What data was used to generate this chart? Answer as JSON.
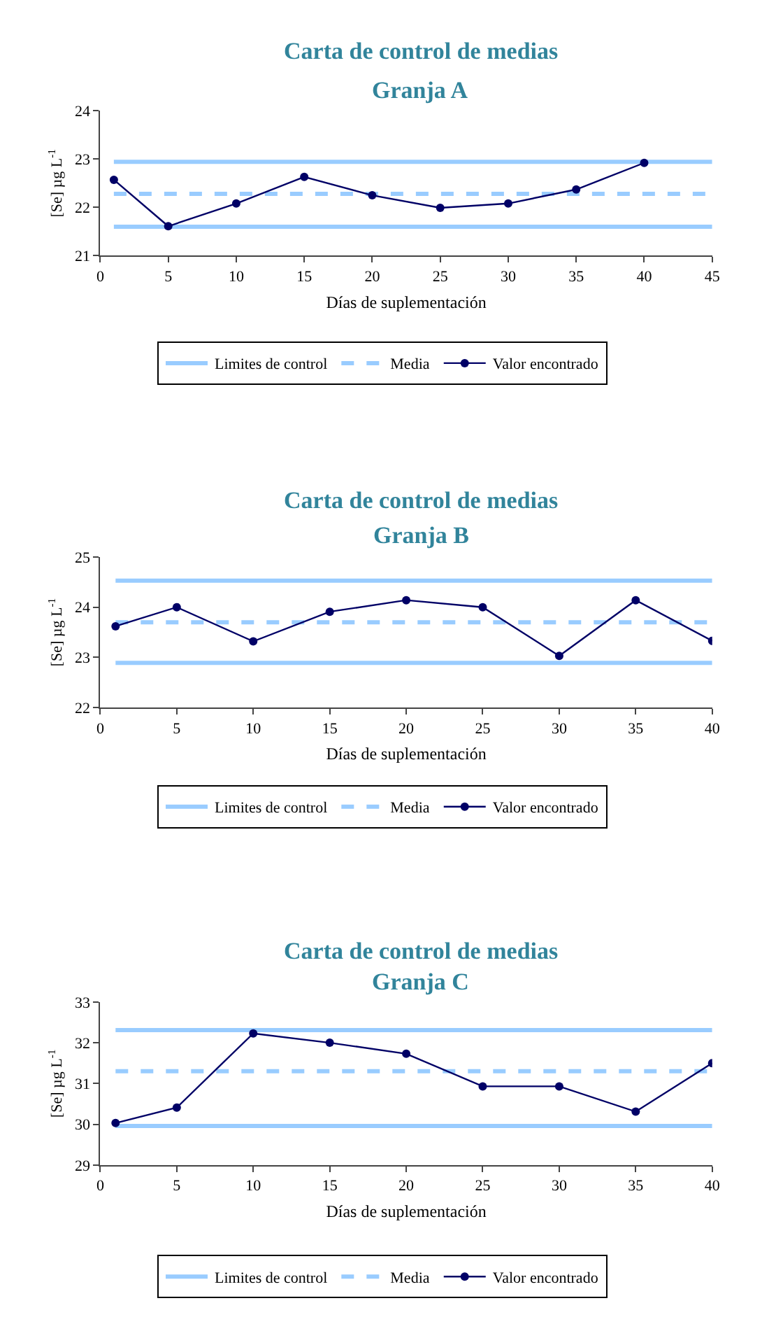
{
  "chart_data": [
    {
      "type": "line",
      "title": "Carta de control de medias",
      "subtitle": "Granja A",
      "xlabel": "Días de suplementación",
      "ylabel": "[Se] µg L$^{-1}$",
      "x": [
        1,
        5,
        10,
        15,
        20,
        25,
        30,
        35,
        40
      ],
      "series": [
        {
          "name": "Valor encontrado",
          "color": "#000066",
          "values": [
            22.57,
            21.61,
            22.08,
            22.63,
            22.25,
            21.99,
            22.08,
            22.37,
            22.92
          ]
        }
      ],
      "ref_lines": [
        {
          "axis": "y",
          "value": 22.94,
          "label": "Limites de control",
          "color": "#99ccff",
          "line_style": "solid"
        },
        {
          "axis": "y",
          "value": 21.6,
          "color": "#99ccff",
          "line_style": "solid"
        },
        {
          "axis": "y",
          "value": 22.28,
          "label": "Media",
          "color": "#99ccff",
          "line_style": "dashed"
        }
      ],
      "xlim": [
        0,
        45
      ],
      "xticks": [
        0,
        5,
        10,
        15,
        20,
        25,
        30,
        35,
        40,
        45
      ],
      "ylim": [
        21,
        24
      ],
      "yticks": [
        21,
        22,
        23,
        24
      ],
      "legend": "bottom",
      "marker": "circle",
      "line_style": "solid"
    },
    {
      "type": "line",
      "title": "Carta de control de medias",
      "subtitle": "Granja B",
      "xlabel": "Días de suplementación",
      "ylabel": "[Se] µg L$^{-1}$",
      "x": [
        1,
        5,
        10,
        15,
        20,
        25,
        30,
        35,
        40
      ],
      "series": [
        {
          "name": "Valor encontrado",
          "color": "#000066",
          "values": [
            23.62,
            24.0,
            23.32,
            23.91,
            24.14,
            24.0,
            23.03,
            24.14,
            23.33
          ]
        }
      ],
      "ref_lines": [
        {
          "axis": "y",
          "value": 24.53,
          "label": "Limites de control",
          "color": "#99ccff",
          "line_style": "solid"
        },
        {
          "axis": "y",
          "value": 22.89,
          "color": "#99ccff",
          "line_style": "solid"
        },
        {
          "axis": "y",
          "value": 23.7,
          "label": "Media",
          "color": "#99ccff",
          "line_style": "dashed"
        }
      ],
      "xlim": [
        0,
        40
      ],
      "xticks": [
        0,
        5,
        10,
        15,
        20,
        25,
        30,
        35,
        40
      ],
      "ylim": [
        22,
        25
      ],
      "yticks": [
        22,
        23,
        24,
        25
      ],
      "legend": "bottom",
      "marker": "circle",
      "line_style": "solid"
    },
    {
      "type": "line",
      "title": "Carta de control de medias",
      "subtitle": "Granja C",
      "xlabel": "Días de suplementación",
      "ylabel": "[Se] µg L$^{-1}$",
      "x": [
        1,
        5,
        10,
        15,
        20,
        25,
        30,
        35,
        40
      ],
      "series": [
        {
          "name": "Valor encontrado",
          "color": "#000066",
          "values": [
            30.03,
            30.41,
            32.23,
            32.0,
            31.73,
            30.93,
            30.93,
            30.31,
            31.5
          ]
        }
      ],
      "ref_lines": [
        {
          "axis": "y",
          "value": 32.31,
          "label": "Limites de control",
          "color": "#99ccff",
          "line_style": "solid"
        },
        {
          "axis": "y",
          "value": 29.96,
          "color": "#99ccff",
          "line_style": "solid"
        },
        {
          "axis": "y",
          "value": 31.3,
          "label": "Media",
          "color": "#99ccff",
          "line_style": "dashed"
        }
      ],
      "xlim": [
        0,
        40
      ],
      "xticks": [
        0,
        5,
        10,
        15,
        20,
        25,
        30,
        35,
        40
      ],
      "ylim": [
        29,
        33
      ],
      "yticks": [
        29,
        30,
        31,
        32,
        33
      ],
      "legend": "bottom",
      "marker": "circle",
      "line_style": "solid"
    }
  ]
}
